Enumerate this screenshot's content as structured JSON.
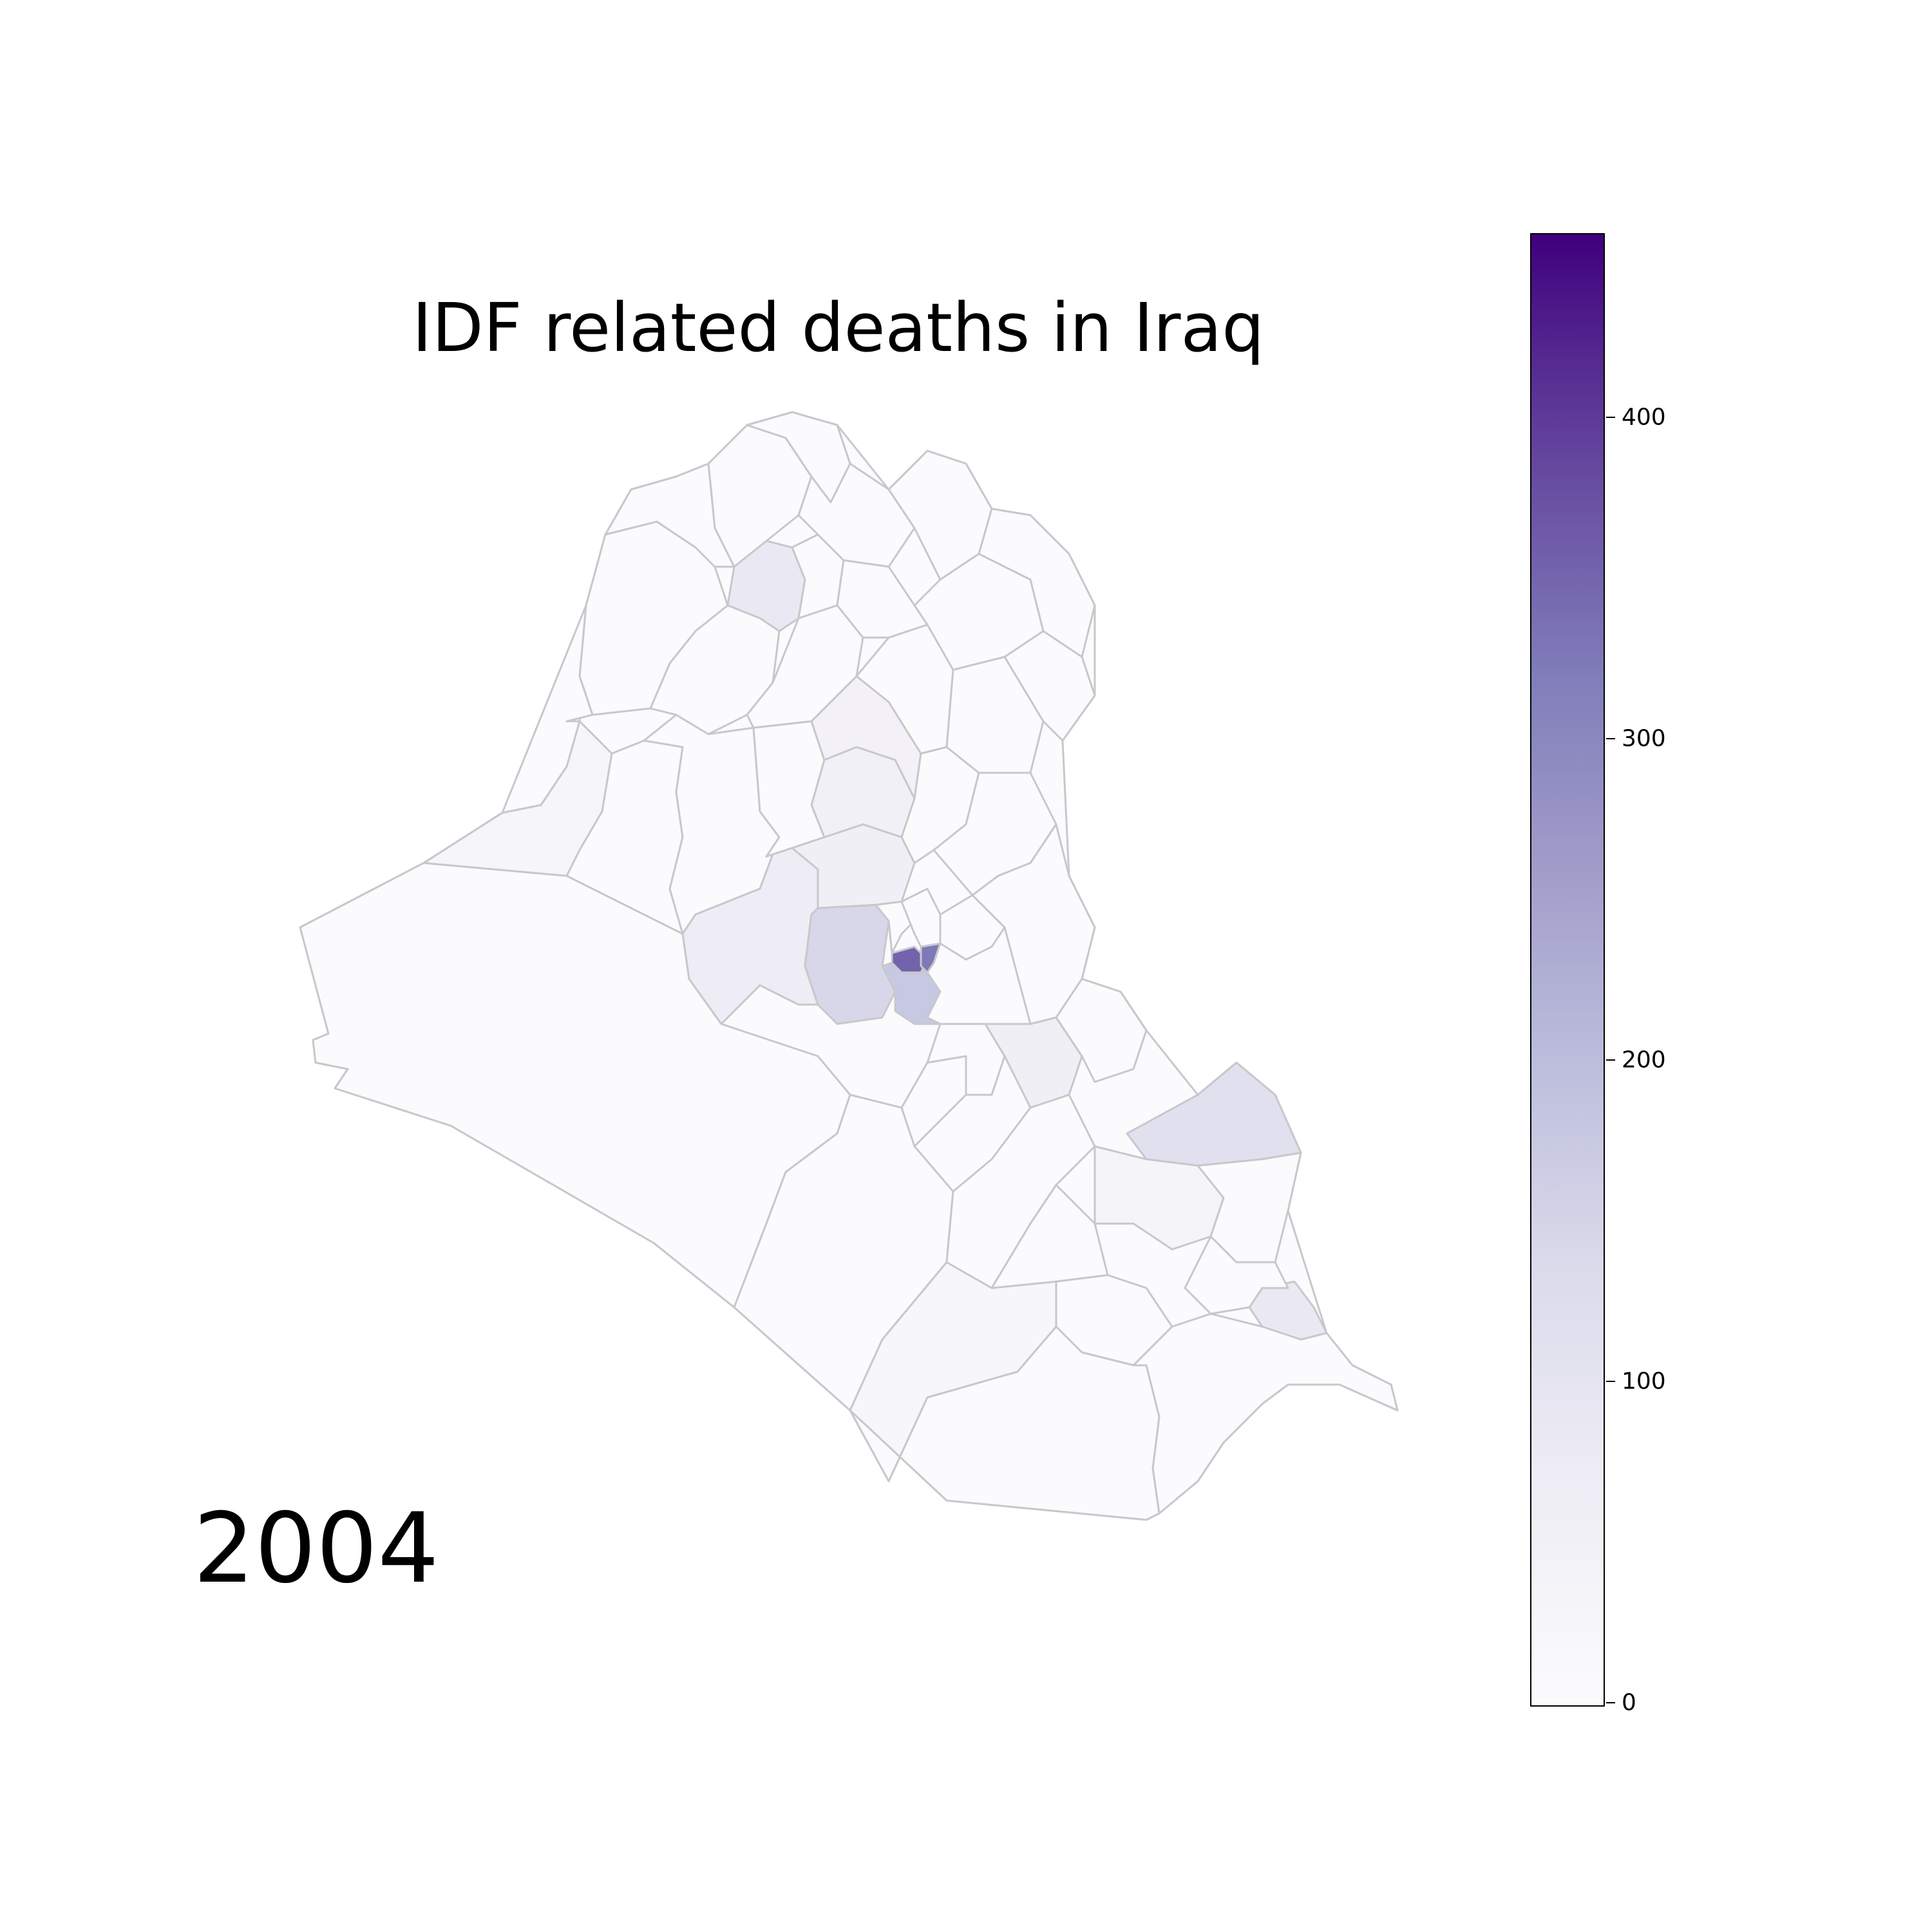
{
  "title": "IDF related deaths in Iraq",
  "year": "2004",
  "colorbar": {
    "min": 0,
    "max": 457,
    "ticks": [
      {
        "value": 0,
        "label": "0"
      },
      {
        "value": 100,
        "label": "100"
      },
      {
        "value": 200,
        "label": "200"
      },
      {
        "value": 300,
        "label": "300"
      },
      {
        "value": 400,
        "label": "400"
      }
    ],
    "colormap": [
      "#fcfbfd",
      "#efedf5",
      "#dadaeb",
      "#bcbddc",
      "#9e9ac8",
      "#807dba",
      "#6a51a3",
      "#54278f",
      "#3f007d"
    ]
  },
  "map": {
    "border_color": "#c8c8cc",
    "district_values": {
      "baghdad_core": 320,
      "baghdad_east": 290,
      "baghdad_southwest": 150,
      "fallujah": 120,
      "ramadi": 60,
      "diyala_east": 95,
      "mosul_west": 70,
      "tikrit": 45,
      "samarra": 50,
      "kirkuk_south": 40,
      "qaim_northwest": 25,
      "nukhaib_southwest": 5,
      "najaf_south": 20,
      "babil": 50,
      "amara": 30,
      "basra": 70,
      "default": 3
    }
  }
}
